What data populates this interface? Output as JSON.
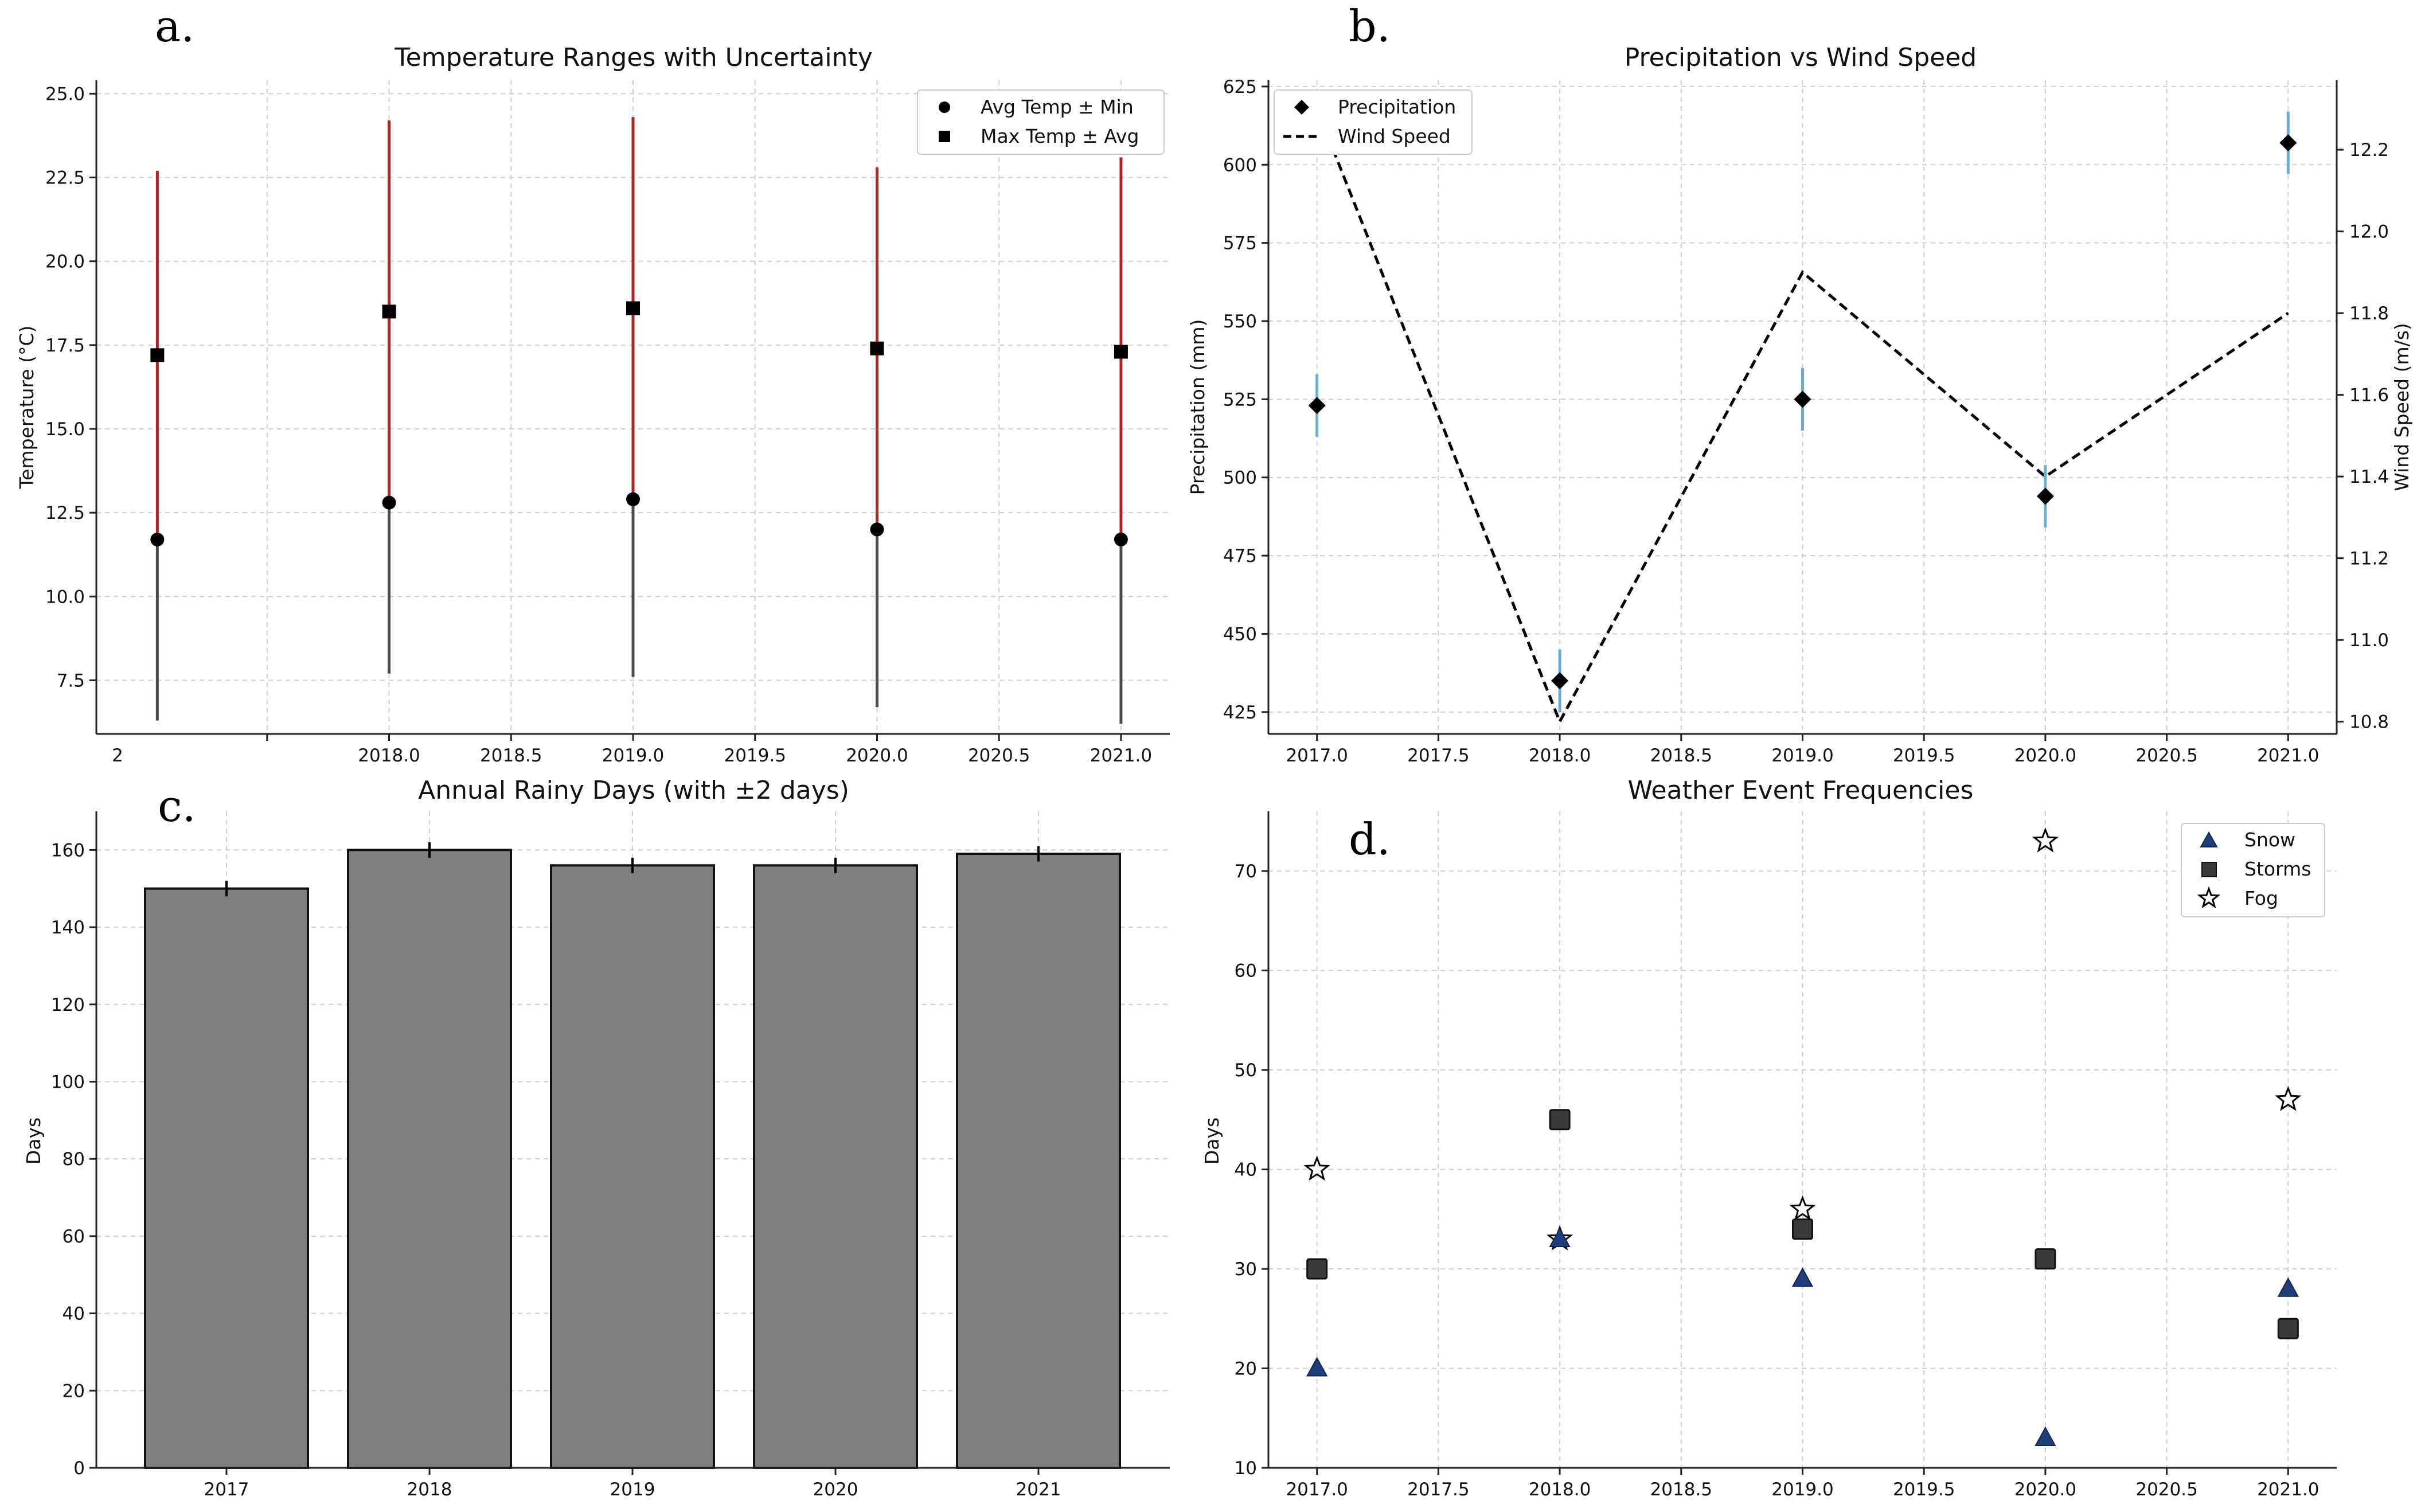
{
  "chart_data": [
    {
      "panel": "a.",
      "type": "scatter",
      "title": "Temperature Ranges with Uncertainty",
      "xlabel": "",
      "ylabel": "Temperature (°C)",
      "xlim": [
        2016.8,
        2021.2
      ],
      "ylim": [
        5.9,
        25.4
      ],
      "x": [
        2017.05,
        2018.0,
        2019.0,
        2020.0,
        2021.0
      ],
      "xticks": [
        2017.5,
        2018.0,
        2018.5,
        2019.0,
        2019.5,
        2020.0,
        2020.5,
        2021.0
      ],
      "xtick_labels": [
        "2018.0",
        "2018.5",
        "2019.0",
        "2019.5",
        "2020.0",
        "2020.5",
        "2021.0"
      ],
      "xtick_partial_label": "2",
      "yticks": [
        7.5,
        10.0,
        12.5,
        15.0,
        17.5,
        20.0,
        22.5,
        25.0
      ],
      "ytick_labels": [
        "7.5",
        "10.0",
        "12.5",
        "15.0",
        "17.5",
        "20.0",
        "22.5",
        "25.0"
      ],
      "grid": true,
      "legend_position": "top-right",
      "series": [
        {
          "name": "Avg Temp ± Min",
          "marker": "circle",
          "values": [
            11.7,
            12.8,
            12.9,
            12.0,
            11.7
          ],
          "err_low": [
            6.3,
            7.7,
            7.6,
            6.7,
            6.2
          ],
          "err_color": "#4a4a4a"
        },
        {
          "name": "Max Temp ± Avg",
          "marker": "square",
          "values": [
            17.2,
            18.5,
            18.6,
            17.4,
            17.3
          ],
          "err_high": [
            22.7,
            24.2,
            24.3,
            22.8,
            23.1
          ],
          "err_color": "#b22222"
        }
      ]
    },
    {
      "panel": "b.",
      "type": "line",
      "title": "Precipitation vs Wind Speed",
      "xlabel": "",
      "ylabel": "Precipitation (mm)",
      "ylabel_right": "Wind Speed (m/s)",
      "xlim": [
        2016.8,
        2021.2
      ],
      "ylim": [
        418,
        627
      ],
      "ylim_right": [
        10.77,
        12.37
      ],
      "x": [
        2017.0,
        2018.0,
        2019.0,
        2020.0,
        2021.0
      ],
      "xticks": [
        2017.0,
        2017.5,
        2018.0,
        2018.5,
        2019.0,
        2019.5,
        2020.0,
        2020.5,
        2021.0
      ],
      "xtick_labels": [
        "2017.0",
        "2017.5",
        "2018.0",
        "2018.5",
        "2019.0",
        "2019.5",
        "2020.0",
        "2020.5",
        "2021.0"
      ],
      "yticks": [
        425,
        450,
        475,
        500,
        525,
        550,
        575,
        600,
        625
      ],
      "ytick_labels": [
        "425",
        "450",
        "475",
        "500",
        "525",
        "550",
        "575",
        "600",
        "625"
      ],
      "yticks_right": [
        10.8,
        11.0,
        11.2,
        11.4,
        11.6,
        11.8,
        12.0,
        12.2
      ],
      "ytick_right_labels": [
        "10.8",
        "11.0",
        "11.2",
        "11.4",
        "11.6",
        "11.8",
        "12.0",
        "12.2"
      ],
      "grid": true,
      "legend_position": "top-left",
      "series": [
        {
          "name": "Precipitation",
          "marker": "diamond",
          "axis": "left",
          "values": [
            523,
            435,
            525,
            494,
            607
          ],
          "err": [
            10,
            10,
            10,
            10,
            10
          ],
          "err_color": "#6aaed6"
        },
        {
          "name": "Wind Speed",
          "style": "dashed",
          "axis": "right",
          "values": [
            12.3,
            10.8,
            11.9,
            11.4,
            11.8
          ]
        }
      ]
    },
    {
      "panel": "c.",
      "type": "bar",
      "title": "Annual Rainy Days (with ±2 days)",
      "xlabel": "",
      "ylabel": "Days",
      "categories": [
        "2017",
        "2018",
        "2019",
        "2020",
        "2021"
      ],
      "values": [
        150,
        160,
        156,
        156,
        159
      ],
      "err": [
        2,
        2,
        2,
        2,
        2
      ],
      "ylim": [
        0,
        170
      ],
      "yticks": [
        0,
        20,
        40,
        60,
        80,
        100,
        120,
        140,
        160
      ],
      "ytick_labels": [
        "0",
        "20",
        "40",
        "60",
        "80",
        "100",
        "120",
        "140",
        "160"
      ],
      "bar_color": "#7f7f7f",
      "grid": true
    },
    {
      "panel": "d.",
      "type": "scatter",
      "title": "Weather Event Frequencies",
      "xlabel": "",
      "ylabel": "Days",
      "xlim": [
        2016.8,
        2021.2
      ],
      "ylim": [
        10,
        76
      ],
      "x": [
        2017.0,
        2018.0,
        2019.0,
        2020.0,
        2021.0
      ],
      "xticks": [
        2017.0,
        2017.5,
        2018.0,
        2018.5,
        2019.0,
        2019.5,
        2020.0,
        2020.5,
        2021.0
      ],
      "xtick_labels": [
        "2017.0",
        "2017.5",
        "2018.0",
        "2018.5",
        "2019.0",
        "2019.5",
        "2020.0",
        "2020.5",
        "2021.0"
      ],
      "yticks": [
        10,
        20,
        30,
        40,
        50,
        60,
        70
      ],
      "ytick_labels": [
        "10",
        "20",
        "30",
        "40",
        "50",
        "60",
        "70"
      ],
      "grid": true,
      "legend_position": "top-right",
      "series": [
        {
          "name": "Snow",
          "marker": "triangle",
          "color": "#1f3f7a",
          "values": [
            20,
            33,
            29,
            13,
            28
          ]
        },
        {
          "name": "Storms",
          "marker": "square",
          "color": "#3a3a3a",
          "values": [
            30,
            45,
            34,
            31,
            24
          ]
        },
        {
          "name": "Fog",
          "marker": "star",
          "color": "#ffffff",
          "values": [
            40,
            33,
            36,
            73,
            47
          ]
        }
      ]
    }
  ]
}
